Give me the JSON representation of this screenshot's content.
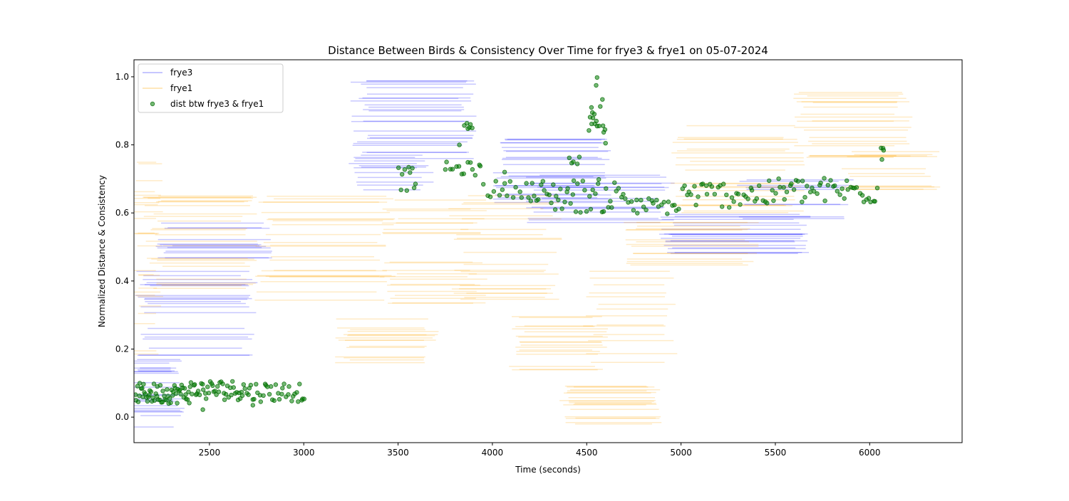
{
  "chart_data": {
    "type": "scatter",
    "title": "Distance Between Birds & Consistency Over Time for frye3 & frye1 on 05-07-2024",
    "xlabel": "Time (seconds)",
    "ylabel": "Normalized Distance & Consistency",
    "xlim": [
      2100,
      6490
    ],
    "ylim": [
      -0.075,
      1.05
    ],
    "xticks": [
      2500,
      3000,
      3500,
      4000,
      4500,
      5000,
      5500,
      6000
    ],
    "yticks": [
      0.0,
      0.2,
      0.4,
      0.6,
      0.8,
      1.0
    ],
    "xtick_labels": [
      "2500",
      "3000",
      "3500",
      "4000",
      "4500",
      "5000",
      "5500",
      "6000"
    ],
    "ytick_labels": [
      "0.0",
      "0.2",
      "0.4",
      "0.6",
      "0.8",
      "1.0"
    ],
    "grid": false,
    "legend_position": "top-left",
    "legend": [
      {
        "label": "frye3",
        "marker": "line",
        "color": "#0000ff"
      },
      {
        "label": "frye1",
        "marker": "line",
        "color": "#ffa500"
      },
      {
        "label": "dist btw frye3 & frye1",
        "marker": "dot",
        "color": "#008000"
      }
    ],
    "series": [
      {
        "name": "frye3",
        "kind": "hline_bundles",
        "color": "#0000ff",
        "opacity": 0.22,
        "bundles": [
          {
            "t_start": 2100,
            "t_end": 2330,
            "y_min": -0.03,
            "y_max": 0.17,
            "spread": 90,
            "count": 24
          },
          {
            "t_start": 2140,
            "t_end": 2710,
            "y_min": 0.18,
            "y_max": 0.44,
            "spread": 90,
            "count": 22
          },
          {
            "t_start": 2260,
            "t_end": 2790,
            "y_min": 0.45,
            "y_max": 0.6,
            "spread": 90,
            "count": 14
          },
          {
            "t_start": 3290,
            "t_end": 3640,
            "y_min": 0.63,
            "y_max": 0.78,
            "spread": 110,
            "count": 12
          },
          {
            "t_start": 3300,
            "t_end": 3870,
            "y_min": 0.75,
            "y_max": 0.99,
            "spread": 110,
            "count": 26
          },
          {
            "t_start": 4050,
            "t_end": 4580,
            "y_min": 0.63,
            "y_max": 0.82,
            "spread": 100,
            "count": 24
          },
          {
            "t_start": 4220,
            "t_end": 4920,
            "y_min": 0.57,
            "y_max": 0.72,
            "spread": 100,
            "count": 16
          },
          {
            "t_start": 4920,
            "t_end": 5640,
            "y_min": 0.48,
            "y_max": 0.6,
            "spread": 100,
            "count": 22
          },
          {
            "t_start": 5340,
            "t_end": 5880,
            "y_min": 0.58,
            "y_max": 0.7,
            "spread": 90,
            "count": 10
          }
        ]
      },
      {
        "name": "frye1",
        "kind": "hline_bundles",
        "color": "#ffa500",
        "opacity": 0.22,
        "bundles": [
          {
            "t_start": 2100,
            "t_end": 2230,
            "y_min": 0.18,
            "y_max": 0.75,
            "spread": 60,
            "count": 26
          },
          {
            "t_start": 2200,
            "t_end": 2700,
            "y_min": 0.35,
            "y_max": 0.67,
            "spread": 110,
            "count": 26
          },
          {
            "t_start": 2800,
            "t_end": 3430,
            "y_min": 0.34,
            "y_max": 0.67,
            "spread": 120,
            "count": 24
          },
          {
            "t_start": 3210,
            "t_end": 3680,
            "y_min": 0.16,
            "y_max": 0.3,
            "spread": 90,
            "count": 16
          },
          {
            "t_start": 3450,
            "t_end": 3920,
            "y_min": 0.32,
            "y_max": 0.66,
            "spread": 110,
            "count": 22
          },
          {
            "t_start": 3820,
            "t_end": 4320,
            "y_min": 0.34,
            "y_max": 0.66,
            "spread": 110,
            "count": 22
          },
          {
            "t_start": 4130,
            "t_end": 4570,
            "y_min": 0.13,
            "y_max": 0.3,
            "spread": 90,
            "count": 18
          },
          {
            "t_start": 4400,
            "t_end": 4860,
            "y_min": -0.03,
            "y_max": 0.1,
            "spread": 90,
            "count": 20
          },
          {
            "t_start": 4520,
            "t_end": 4950,
            "y_min": 0.16,
            "y_max": 0.45,
            "spread": 90,
            "count": 14
          },
          {
            "t_start": 4720,
            "t_end": 5360,
            "y_min": 0.44,
            "y_max": 0.58,
            "spread": 110,
            "count": 16
          },
          {
            "t_start": 5000,
            "t_end": 5600,
            "y_min": 0.6,
            "y_max": 0.87,
            "spread": 120,
            "count": 24
          },
          {
            "t_start": 5650,
            "t_end": 6180,
            "y_min": 0.76,
            "y_max": 0.96,
            "spread": 110,
            "count": 22
          },
          {
            "t_start": 5900,
            "t_end": 6330,
            "y_min": 0.65,
            "y_max": 0.79,
            "spread": 100,
            "count": 12
          }
        ]
      },
      {
        "name": "dist btw frye3 & frye1",
        "kind": "scatter_segments",
        "color": "#008000",
        "segments": [
          {
            "x0": 2105,
            "x1": 2400,
            "y": 0.07,
            "amp": 0.03,
            "n": 60
          },
          {
            "x0": 2400,
            "x1": 2700,
            "y": 0.08,
            "amp": 0.03,
            "n": 45
          },
          {
            "x0": 2700,
            "x1": 3010,
            "y": 0.075,
            "amp": 0.03,
            "n": 35
          },
          {
            "x0": 3500,
            "x1": 3600,
            "y": 0.7,
            "amp": 0.035,
            "n": 10
          },
          {
            "x0": 3740,
            "x1": 3950,
            "y": 0.73,
            "amp": 0.02,
            "n": 14
          },
          {
            "x0": 3850,
            "x1": 3900,
            "y": 0.855,
            "amp": 0.01,
            "n": 6
          },
          {
            "x0": 3950,
            "x1": 4200,
            "y": 0.67,
            "amp": 0.025,
            "n": 16
          },
          {
            "x0": 4200,
            "x1": 4450,
            "y": 0.65,
            "amp": 0.05,
            "n": 24
          },
          {
            "x0": 4400,
            "x1": 4470,
            "y": 0.755,
            "amp": 0.012,
            "n": 5
          },
          {
            "x0": 4450,
            "x1": 4700,
            "y": 0.65,
            "amp": 0.05,
            "n": 22
          },
          {
            "x0": 4510,
            "x1": 4600,
            "y": 0.88,
            "amp": 0.06,
            "n": 12
          },
          {
            "x0": 4700,
            "x1": 5000,
            "y": 0.62,
            "amp": 0.025,
            "n": 22
          },
          {
            "x0": 5000,
            "x1": 5500,
            "y": 0.655,
            "amp": 0.04,
            "n": 40
          },
          {
            "x0": 5500,
            "x1": 6050,
            "y": 0.665,
            "amp": 0.04,
            "n": 46
          },
          {
            "x0": 6060,
            "x1": 6080,
            "y": 0.79,
            "amp": 0.008,
            "n": 3
          }
        ],
        "points": [
          {
            "x": 4555,
            "y": 0.998
          },
          {
            "x": 4550,
            "y": 0.975
          },
          {
            "x": 4525,
            "y": 0.91
          },
          {
            "x": 4530,
            "y": 0.895
          },
          {
            "x": 4543,
            "y": 0.862
          },
          {
            "x": 3825,
            "y": 0.8
          },
          {
            "x": 4600,
            "y": 0.805
          },
          {
            "x": 4590,
            "y": 0.837
          },
          {
            "x": 4065,
            "y": 0.72
          },
          {
            "x": 6065,
            "y": 0.757
          },
          {
            "x": 2465,
            "y": 0.022
          },
          {
            "x": 2730,
            "y": 0.035
          }
        ]
      }
    ]
  }
}
